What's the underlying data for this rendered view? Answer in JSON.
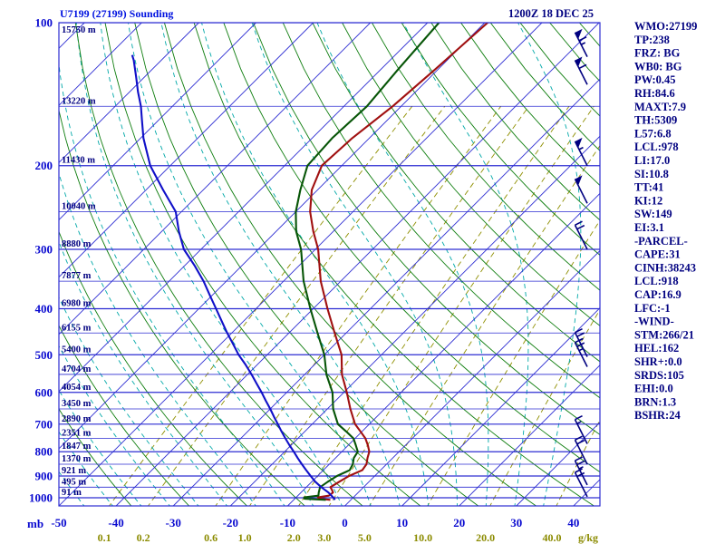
{
  "window": {
    "title": "U7199 (27199) Sounding",
    "datetime": "1200Z 18 DEC 25"
  },
  "colors": {
    "background": "#ffffff",
    "grid_blue": "#2d2dd2",
    "dry_adiabat_green": "#0e7d0e",
    "moist_adiabat_cyan": "#00a8a8",
    "mixing_ratio_olive": "#8f8f00",
    "temperature_curve": "#a01010",
    "dewpoint_curve": "#075507",
    "parcel_curve": "#1010c8",
    "text_navy": "#000080",
    "text_blue": "#0b0bd0",
    "text_olive": "#8b8b00"
  },
  "stats_panel": {
    "lines": [
      "WMO:27199",
      "TP:238",
      "FRZ: BG",
      "WB0: BG",
      "PW:0.45",
      "RH:84.6",
      "MAXT:7.9",
      "TH:5309",
      "L57:6.8",
      "LCL:978",
      "LI:17.0",
      "SI:10.8",
      "TT:41",
      "KI:12",
      "SW:149",
      "EI:3.1",
      "-PARCEL-",
      "CAPE:31",
      "CINH:38243",
      "LCL:918",
      "CAP:16.9",
      "LFC:-1",
      "-WIND-",
      "STM:266/21",
      "HEL:162",
      "SHR+:0.0",
      "SRDS:105",
      "EHI:0.0",
      "BRN:1.3",
      "BSHR:24"
    ]
  },
  "chart_data": {
    "type": "line",
    "subtype": "skew-t-log-p-sounding",
    "title": "U7199 (27199) Sounding",
    "datetime": "1200Z 18 DEC 25",
    "pressure_axis_unit": "mb",
    "mixing_ratio_unit": "g/kg",
    "pressure_ticks_mb": [
      100,
      200,
      300,
      400,
      500,
      600,
      700,
      800,
      900,
      1000
    ],
    "isobar_lines_mb_step": 50,
    "temp_ticks_c": [
      -50,
      -40,
      -30,
      -20,
      -10,
      0,
      10,
      20,
      30,
      40
    ],
    "axis_ranges": {
      "pressure_mb": [
        100,
        1044
      ],
      "temp_at_bottom_c": [
        -50,
        44
      ]
    },
    "grid": {
      "isotherm_range": [
        -130,
        40,
        10
      ],
      "dry_adiabat_theta_c": [
        -40,
        240,
        10
      ],
      "moist_adiabat_start_c": [
        -60,
        35,
        5
      ]
    },
    "height_labels": [
      {
        "p": 100,
        "label": "15750 m"
      },
      {
        "p": 150,
        "label": "13220 m"
      },
      {
        "p": 200,
        "label": "11430 m"
      },
      {
        "p": 250,
        "label": "10040 m"
      },
      {
        "p": 300,
        "label": "8880 m"
      },
      {
        "p": 350,
        "label": "7877 m"
      },
      {
        "p": 400,
        "label": "6980 m"
      },
      {
        "p": 450,
        "label": "6155 m"
      },
      {
        "p": 500,
        "label": "5400 m"
      },
      {
        "p": 550,
        "label": "4704 m"
      },
      {
        "p": 600,
        "label": "4054 m"
      },
      {
        "p": 650,
        "label": "3450 m"
      },
      {
        "p": 700,
        "label": "2890 m"
      },
      {
        "p": 750,
        "label": "2351 m"
      },
      {
        "p": 800,
        "label": "1847 m"
      },
      {
        "p": 850,
        "label": "1370 m"
      },
      {
        "p": 900,
        "label": "921 m"
      },
      {
        "p": 950,
        "label": "495 m"
      },
      {
        "p": 1000,
        "label": "91 m"
      }
    ],
    "mixing_ratio_lines": [
      {
        "value": 0.1,
        "label": "0.1"
      },
      {
        "value": 0.2,
        "label": "0.2"
      },
      {
        "value": 0.6,
        "label": "0.6"
      },
      {
        "value": 1.0,
        "label": "1.0"
      },
      {
        "value": 2.0,
        "label": "2.0"
      },
      {
        "value": 3.0,
        "label": "3.0"
      },
      {
        "value": 5.0,
        "label": "5.0"
      },
      {
        "value": 10.0,
        "label": "10.0"
      },
      {
        "value": 20.0,
        "label": "20.0"
      },
      {
        "value": 40.0,
        "label": "40.0"
      }
    ],
    "series": [
      {
        "name": "temperature",
        "color": "#a01010",
        "points": [
          [
            1010,
            -3.6
          ],
          [
            1004,
            -5.8
          ],
          [
            998,
            -6.2
          ],
          [
            990,
            -4.6
          ],
          [
            975,
            -4.4
          ],
          [
            960,
            -5.2
          ],
          [
            950,
            -5.8
          ],
          [
            925,
            -5.2
          ],
          [
            900,
            -4.5
          ],
          [
            875,
            -3.2
          ],
          [
            850,
            -3.5
          ],
          [
            825,
            -4.4
          ],
          [
            800,
            -5.2
          ],
          [
            775,
            -6.6
          ],
          [
            750,
            -8.2
          ],
          [
            725,
            -10.3
          ],
          [
            700,
            -12.5
          ],
          [
            650,
            -16.0
          ],
          [
            600,
            -19.5
          ],
          [
            550,
            -23.5
          ],
          [
            500,
            -27.0
          ],
          [
            450,
            -32.0
          ],
          [
            400,
            -37.5
          ],
          [
            350,
            -43.5
          ],
          [
            300,
            -49.5
          ],
          [
            275,
            -53.5
          ],
          [
            250,
            -57.5
          ],
          [
            225,
            -61.0
          ],
          [
            200,
            -63.5
          ],
          [
            175,
            -63.0
          ],
          [
            150,
            -61.5
          ],
          [
            125,
            -60.5
          ],
          [
            100,
            -59.5
          ]
        ]
      },
      {
        "name": "dewpoint",
        "color": "#075507",
        "points": [
          [
            1010,
            -4.4
          ],
          [
            1005,
            -8.3
          ],
          [
            998,
            -8.6
          ],
          [
            990,
            -6.4
          ],
          [
            975,
            -6.9
          ],
          [
            950,
            -7.6
          ],
          [
            925,
            -7.2
          ],
          [
            900,
            -6.6
          ],
          [
            875,
            -5.4
          ],
          [
            850,
            -5.9
          ],
          [
            825,
            -6.8
          ],
          [
            800,
            -7.2
          ],
          [
            775,
            -8.7
          ],
          [
            750,
            -10.3
          ],
          [
            725,
            -12.8
          ],
          [
            700,
            -15.5
          ],
          [
            650,
            -19.0
          ],
          [
            600,
            -22.0
          ],
          [
            550,
            -26.2
          ],
          [
            500,
            -30.0
          ],
          [
            450,
            -35.0
          ],
          [
            400,
            -40.5
          ],
          [
            350,
            -46.5
          ],
          [
            300,
            -52.5
          ],
          [
            275,
            -56.5
          ],
          [
            250,
            -60.0
          ],
          [
            225,
            -63.0
          ],
          [
            200,
            -66.0
          ],
          [
            175,
            -66.5
          ],
          [
            150,
            -66.0
          ],
          [
            125,
            -67.0
          ],
          [
            100,
            -68.0
          ]
        ]
      },
      {
        "name": "parcel",
        "color": "#1010c8",
        "points": [
          [
            1010,
            -2.8
          ],
          [
            1000,
            -3.4
          ],
          [
            975,
            -5.2
          ],
          [
            950,
            -7.4
          ],
          [
            925,
            -9.4
          ],
          [
            900,
            -11.2
          ],
          [
            875,
            -13.0
          ],
          [
            850,
            -14.8
          ],
          [
            825,
            -16.6
          ],
          [
            800,
            -18.4
          ],
          [
            775,
            -20.3
          ],
          [
            750,
            -22.2
          ],
          [
            725,
            -24.1
          ],
          [
            700,
            -26.0
          ],
          [
            675,
            -28.0
          ],
          [
            650,
            -30.0
          ],
          [
            625,
            -32.2
          ],
          [
            600,
            -34.4
          ],
          [
            575,
            -36.8
          ],
          [
            550,
            -39.3
          ],
          [
            525,
            -42.0
          ],
          [
            500,
            -45.0
          ],
          [
            475,
            -47.8
          ],
          [
            450,
            -50.8
          ],
          [
            425,
            -53.8
          ],
          [
            400,
            -57.0
          ],
          [
            375,
            -60.4
          ],
          [
            350,
            -64.0
          ],
          [
            325,
            -68.2
          ],
          [
            300,
            -73.0
          ],
          [
            275,
            -77.0
          ],
          [
            250,
            -81.0
          ],
          [
            225,
            -87.0
          ],
          [
            200,
            -93.5
          ],
          [
            185,
            -97.0
          ],
          [
            175,
            -99.5
          ],
          [
            160,
            -103.0
          ],
          [
            150,
            -105.5
          ],
          [
            140,
            -108.5
          ],
          [
            130,
            -111.5
          ],
          [
            120,
            -114.8
          ],
          [
            117,
            -116.0
          ]
        ]
      }
    ],
    "wind_barbs": [
      {
        "p": 118,
        "kt": 65
      },
      {
        "p": 135,
        "kt": 60
      },
      {
        "p": 200,
        "kt": 55
      },
      {
        "p": 240,
        "kt": 50
      },
      {
        "p": 300,
        "kt": 20
      },
      {
        "p": 505,
        "kt": 25
      },
      {
        "p": 530,
        "kt": 25
      },
      {
        "p": 770,
        "kt": 15
      },
      {
        "p": 850,
        "kt": 20
      },
      {
        "p": 940,
        "kt": 25
      },
      {
        "p": 995,
        "kt": 20
      }
    ]
  }
}
